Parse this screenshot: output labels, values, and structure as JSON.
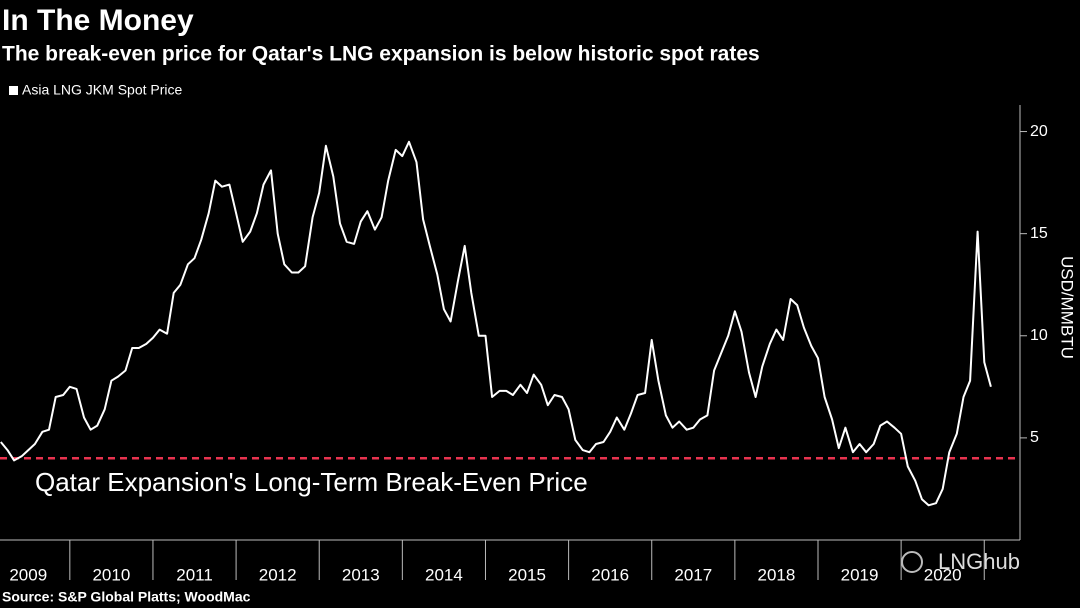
{
  "chart_data": {
    "type": "line",
    "title": "In The Money",
    "subtitle": "The break-even price for Qatar's LNG expansion is below historic spot rates",
    "source": "Source: S&P Global Platts; WoodMac",
    "watermark": "LNGhub",
    "y_axis_label": "USD/MMBTU",
    "reference_line": {
      "value": 4,
      "label": "Qatar Expansion's Long-Term Break-Even Price",
      "color": "#e8334f"
    },
    "x": [
      2009.17,
      2009.25,
      2009.33,
      2009.42,
      2009.5,
      2009.58,
      2009.67,
      2009.75,
      2009.83,
      2009.92,
      2010,
      2010.08,
      2010.17,
      2010.25,
      2010.33,
      2010.42,
      2010.5,
      2010.58,
      2010.67,
      2010.75,
      2010.83,
      2010.92,
      2011,
      2011.08,
      2011.17,
      2011.25,
      2011.33,
      2011.42,
      2011.5,
      2011.58,
      2011.67,
      2011.75,
      2011.83,
      2011.92,
      2012,
      2012.08,
      2012.17,
      2012.25,
      2012.33,
      2012.42,
      2012.5,
      2012.58,
      2012.67,
      2012.75,
      2012.83,
      2012.92,
      2013,
      2013.08,
      2013.17,
      2013.25,
      2013.33,
      2013.42,
      2013.5,
      2013.58,
      2013.67,
      2013.75,
      2013.83,
      2013.92,
      2014,
      2014.08,
      2014.17,
      2014.25,
      2014.33,
      2014.42,
      2014.5,
      2014.58,
      2014.67,
      2014.75,
      2014.83,
      2014.92,
      2015,
      2015.08,
      2015.17,
      2015.25,
      2015.33,
      2015.42,
      2015.5,
      2015.58,
      2015.67,
      2015.75,
      2015.83,
      2015.92,
      2016,
      2016.08,
      2016.17,
      2016.25,
      2016.33,
      2016.42,
      2016.5,
      2016.58,
      2016.67,
      2016.75,
      2016.83,
      2016.92,
      2017,
      2017.08,
      2017.17,
      2017.25,
      2017.33,
      2017.42,
      2017.5,
      2017.58,
      2017.67,
      2017.75,
      2017.83,
      2017.92,
      2018,
      2018.08,
      2018.17,
      2018.25,
      2018.33,
      2018.42,
      2018.5,
      2018.58,
      2018.67,
      2018.75,
      2018.83,
      2018.92,
      2019,
      2019.08,
      2019.17,
      2019.25,
      2019.33,
      2019.42,
      2019.5,
      2019.58,
      2019.67,
      2019.75,
      2019.83,
      2019.92,
      2020,
      2020.08,
      2020.17,
      2020.25,
      2020.33,
      2020.42,
      2020.5,
      2020.58,
      2020.67,
      2020.75,
      2020.83,
      2020.92,
      2021,
      2021.08
    ],
    "series": [
      {
        "name": "Asia LNG JKM Spot Price",
        "color": "#ffffff",
        "values": [
          4.8,
          4.4,
          3.9,
          4.1,
          4.4,
          4.7,
          5.3,
          5.4,
          7.0,
          7.1,
          7.5,
          7.4,
          6.0,
          5.4,
          5.6,
          6.4,
          7.8,
          8.0,
          8.3,
          9.4,
          9.4,
          9.6,
          9.9,
          10.3,
          10.1,
          12.1,
          12.5,
          13.5,
          13.8,
          14.7,
          16.0,
          17.6,
          17.3,
          17.4,
          16.0,
          14.6,
          15.1,
          16.0,
          17.4,
          18.1,
          15.0,
          13.5,
          13.1,
          13.1,
          13.4,
          15.8,
          17.0,
          19.3,
          17.8,
          15.5,
          14.6,
          14.5,
          15.6,
          16.1,
          15.2,
          15.8,
          17.6,
          19.1,
          18.8,
          19.5,
          18.5,
          15.7,
          14.4,
          13.0,
          11.3,
          10.7,
          12.7,
          14.4,
          12.1,
          10.0,
          10.0,
          7.0,
          7.3,
          7.3,
          7.1,
          7.6,
          7.2,
          8.1,
          7.6,
          6.6,
          7.1,
          7.0,
          6.4,
          4.9,
          4.4,
          4.3,
          4.7,
          4.8,
          5.3,
          6.0,
          5.4,
          6.2,
          7.1,
          7.2,
          9.8,
          7.8,
          6.1,
          5.5,
          5.8,
          5.4,
          5.5,
          5.9,
          6.1,
          8.3,
          9.1,
          10.0,
          11.2,
          10.2,
          8.2,
          7.0,
          8.5,
          9.6,
          10.3,
          9.8,
          11.8,
          11.5,
          10.4,
          9.5,
          8.9,
          7.0,
          5.9,
          4.5,
          5.5,
          4.3,
          4.7,
          4.3,
          4.7,
          5.6,
          5.8,
          5.5,
          5.2,
          3.6,
          2.9,
          2.0,
          1.7,
          1.8,
          2.5,
          4.3,
          5.2,
          7.0,
          7.8,
          15.1,
          8.7,
          7.5
        ]
      }
    ],
    "xlim": [
      2009.16,
      2021.43
    ],
    "xticks": [
      {
        "value": 2009.5,
        "label": "2009"
      },
      {
        "value": 2010.5,
        "label": "2010"
      },
      {
        "value": 2011.5,
        "label": "2011"
      },
      {
        "value": 2012.5,
        "label": "2012"
      },
      {
        "value": 2013.5,
        "label": "2013"
      },
      {
        "value": 2014.5,
        "label": "2014"
      },
      {
        "value": 2015.5,
        "label": "2015"
      },
      {
        "value": 2016.5,
        "label": "2016"
      },
      {
        "value": 2017.5,
        "label": "2017"
      },
      {
        "value": 2018.5,
        "label": "2018"
      },
      {
        "value": 2019.5,
        "label": "2019"
      },
      {
        "value": 2020.5,
        "label": "2020"
      }
    ],
    "ylim": [
      0,
      21.3
    ],
    "yticks": [
      5,
      10,
      15,
      20
    ],
    "y_axis_side": "right",
    "grid": false
  }
}
